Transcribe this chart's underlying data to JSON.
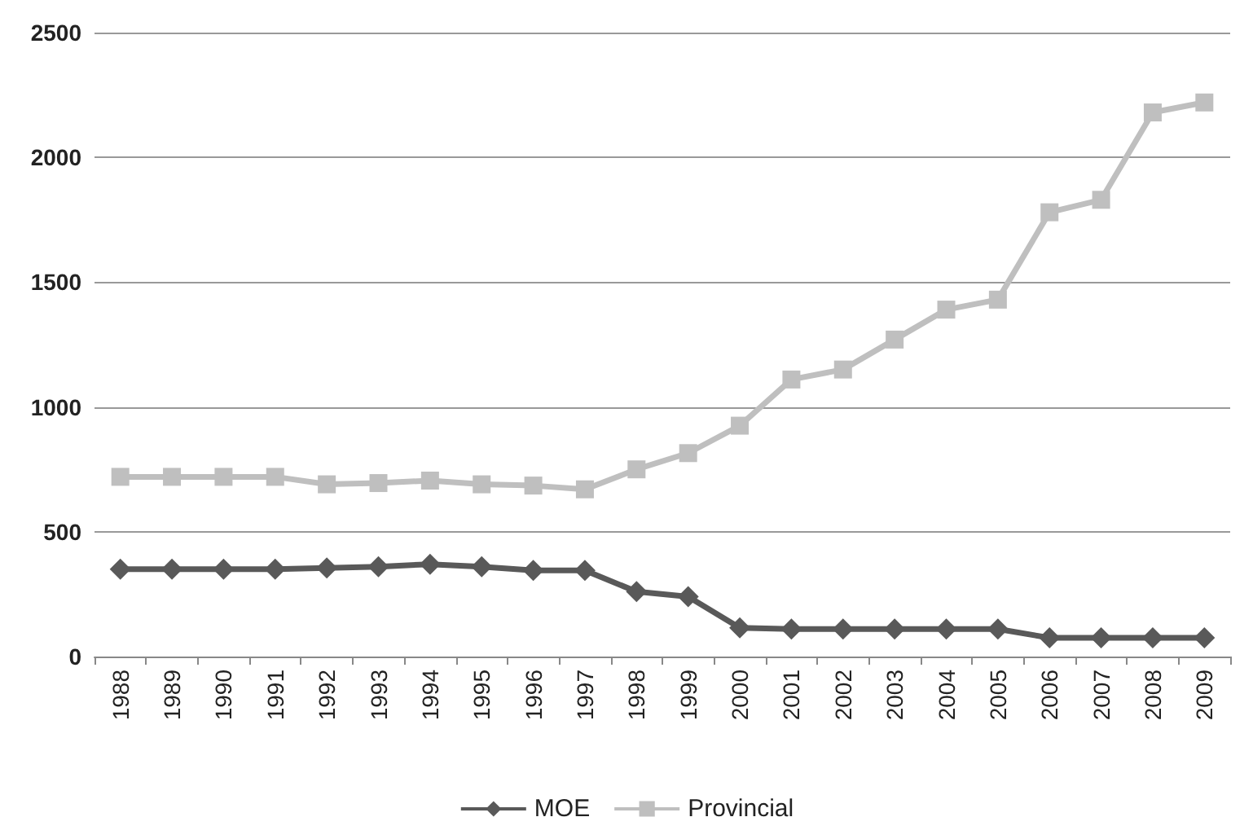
{
  "chart_data": {
    "type": "line",
    "categories": [
      "1988",
      "1989",
      "1990",
      "1991",
      "1992",
      "1993",
      "1994",
      "1995",
      "1996",
      "1997",
      "1998",
      "1999",
      "2000",
      "2001",
      "2002",
      "2003",
      "2004",
      "2005",
      "2006",
      "2007",
      "2008",
      "2009"
    ],
    "series": [
      {
        "name": "MOE",
        "color": "#595959",
        "marker": "diamond",
        "values": [
          350,
          350,
          350,
          350,
          355,
          360,
          370,
          360,
          345,
          345,
          260,
          240,
          115,
          110,
          110,
          110,
          110,
          110,
          75,
          75,
          75,
          75
        ]
      },
      {
        "name": "Provincial",
        "color": "#bfbfbf",
        "marker": "square",
        "values": [
          720,
          720,
          720,
          720,
          690,
          695,
          705,
          690,
          685,
          670,
          750,
          815,
          925,
          1110,
          1150,
          1270,
          1390,
          1430,
          1780,
          1830,
          2180,
          2220
        ]
      }
    ],
    "ylim": [
      0,
      2500
    ],
    "yticks": [
      0,
      500,
      1000,
      1500,
      2000,
      2500
    ],
    "grid": "y",
    "legend": "bottom",
    "line_style": "solid"
  }
}
